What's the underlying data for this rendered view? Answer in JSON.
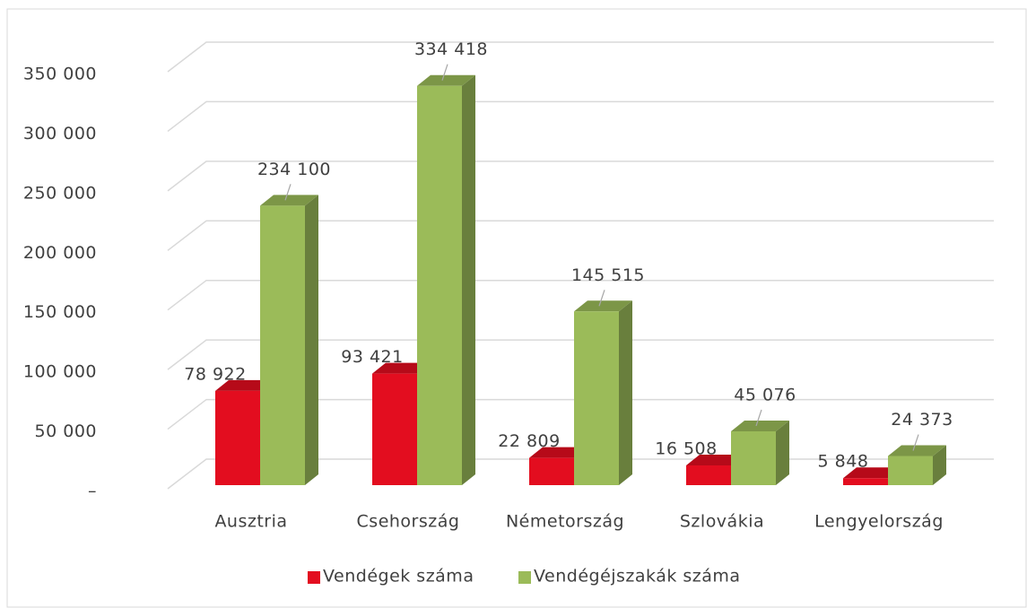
{
  "chart_data": {
    "type": "bar3d",
    "categories": [
      "Ausztria",
      "Csehország",
      "Németország",
      "Szlovákia",
      "Lengyelország"
    ],
    "series": [
      {
        "name": "Vendégek száma",
        "color": "#e30d1f",
        "values": [
          78922,
          93421,
          22809,
          16508,
          5848
        ],
        "value_labels": [
          "78 922",
          "93 421",
          "22 809",
          "16 508",
          "5 848"
        ]
      },
      {
        "name": "Vendégéjszakák száma",
        "color": "#9bbb59",
        "values": [
          234100,
          334418,
          145515,
          45076,
          24373
        ],
        "value_labels": [
          "234 100",
          "334 418",
          "145 515",
          "45 076",
          "24 373"
        ]
      }
    ],
    "ylim": [
      0,
      350000
    ],
    "yticks": [
      {
        "value": 0,
        "label": "–"
      },
      {
        "value": 50000,
        "label": "50 000"
      },
      {
        "value": 100000,
        "label": "100 000"
      },
      {
        "value": 150000,
        "label": "150 000"
      },
      {
        "value": 200000,
        "label": "200 000"
      },
      {
        "value": 250000,
        "label": "250 000"
      },
      {
        "value": 300000,
        "label": "300 000"
      },
      {
        "value": 350000,
        "label": "350 000"
      }
    ],
    "grid": true,
    "legend": "bottom"
  }
}
